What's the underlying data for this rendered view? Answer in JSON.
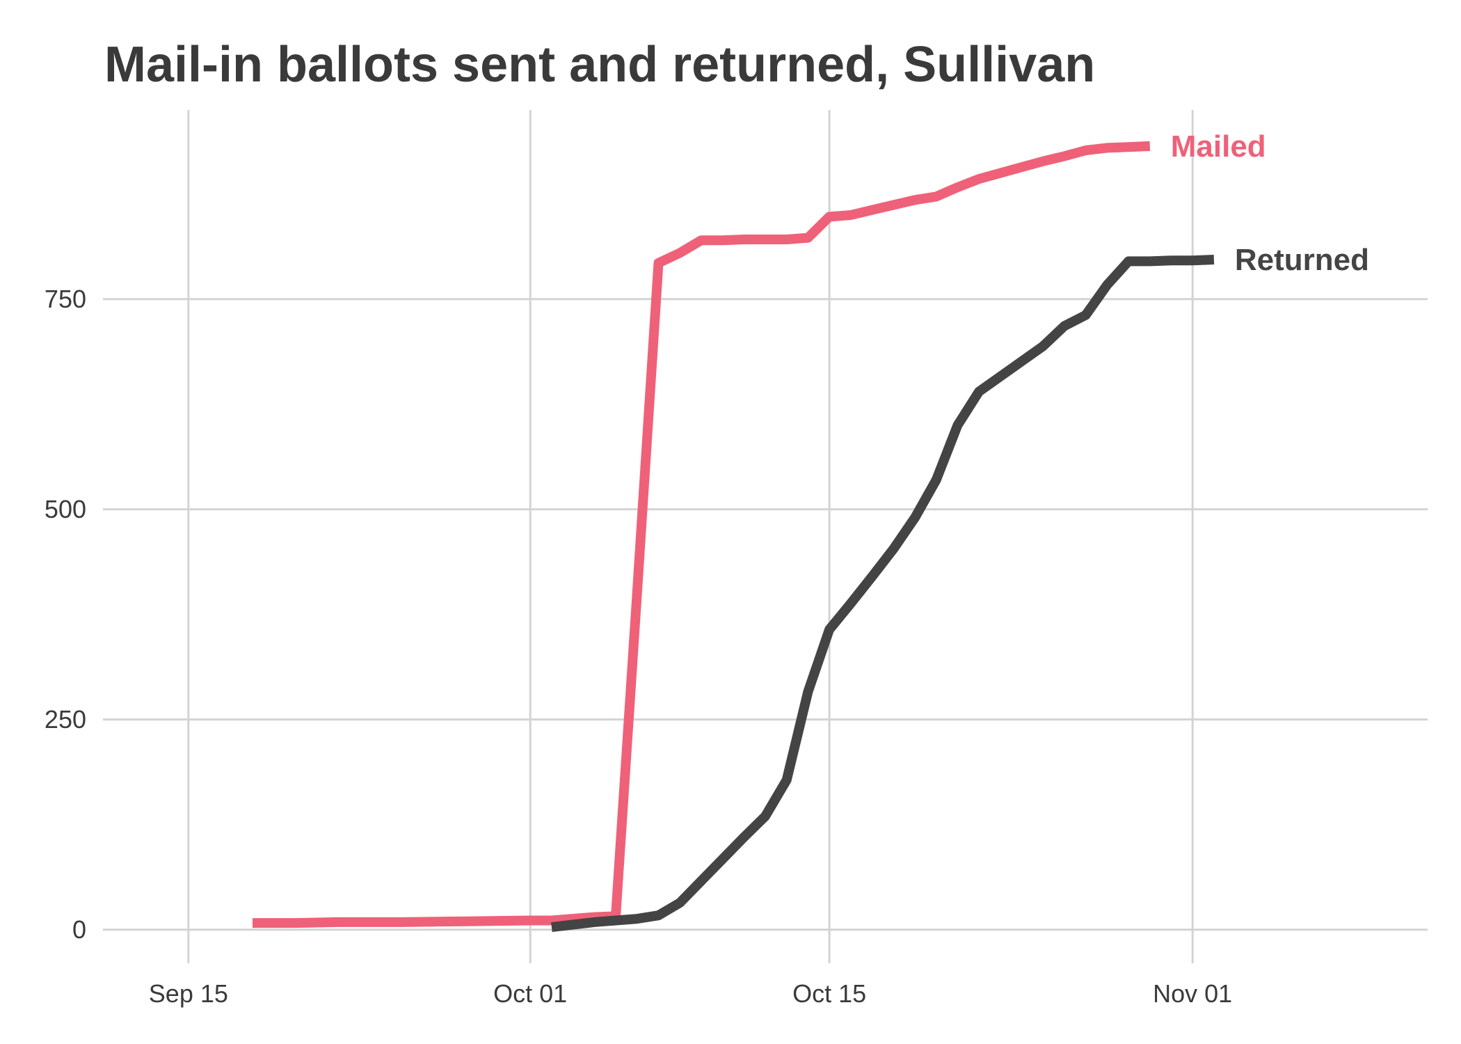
{
  "chart_data": {
    "type": "line",
    "title": "Mail-in ballots sent and returned, Sullivan",
    "xlabel": "",
    "ylabel": "",
    "x_ticks": [
      {
        "date": "2020-09-15",
        "label": "Sep 15"
      },
      {
        "date": "2020-10-01",
        "label": "Oct 01"
      },
      {
        "date": "2020-10-15",
        "label": "Oct 15"
      },
      {
        "date": "2020-11-01",
        "label": "Nov 01"
      }
    ],
    "y_ticks": [
      0,
      250,
      500,
      750
    ],
    "xlim": [
      "2020-09-11",
      "2020-11-12"
    ],
    "ylim": [
      -30,
      975
    ],
    "grid": true,
    "legend": "direct labels at line ends",
    "series": [
      {
        "name": "Mailed",
        "color": "#ef6178",
        "points": [
          [
            "2020-09-18",
            8
          ],
          [
            "2020-09-20",
            8
          ],
          [
            "2020-09-22",
            9
          ],
          [
            "2020-09-25",
            9
          ],
          [
            "2020-09-28",
            10
          ],
          [
            "2020-10-01",
            11
          ],
          [
            "2020-10-02",
            11
          ],
          [
            "2020-10-04",
            15
          ],
          [
            "2020-10-05",
            16
          ],
          [
            "2020-10-06",
            400
          ],
          [
            "2020-10-07",
            793
          ],
          [
            "2020-10-08",
            805
          ],
          [
            "2020-10-09",
            820
          ],
          [
            "2020-10-10",
            820
          ],
          [
            "2020-10-11",
            821
          ],
          [
            "2020-10-12",
            821
          ],
          [
            "2020-10-13",
            821
          ],
          [
            "2020-10-14",
            823
          ],
          [
            "2020-10-15",
            848
          ],
          [
            "2020-10-16",
            850
          ],
          [
            "2020-10-17",
            856
          ],
          [
            "2020-10-18",
            862
          ],
          [
            "2020-10-19",
            868
          ],
          [
            "2020-10-20",
            872
          ],
          [
            "2020-10-21",
            883
          ],
          [
            "2020-10-22",
            893
          ],
          [
            "2020-10-23",
            900
          ],
          [
            "2020-10-24",
            907
          ],
          [
            "2020-10-25",
            914
          ],
          [
            "2020-10-26",
            920
          ],
          [
            "2020-10-27",
            927
          ],
          [
            "2020-10-28",
            930
          ],
          [
            "2020-10-29",
            931
          ],
          [
            "2020-10-30",
            932
          ]
        ]
      },
      {
        "name": "Returned",
        "color": "#444444",
        "points": [
          [
            "2020-10-02",
            3
          ],
          [
            "2020-10-03",
            6
          ],
          [
            "2020-10-04",
            9
          ],
          [
            "2020-10-05",
            11
          ],
          [
            "2020-10-06",
            13
          ],
          [
            "2020-10-07",
            17
          ],
          [
            "2020-10-08",
            32
          ],
          [
            "2020-10-09",
            58
          ],
          [
            "2020-10-10",
            84
          ],
          [
            "2020-10-11",
            110
          ],
          [
            "2020-10-12",
            135
          ],
          [
            "2020-10-13",
            178
          ],
          [
            "2020-10-14",
            283
          ],
          [
            "2020-10-15",
            357
          ],
          [
            "2020-10-16",
            388
          ],
          [
            "2020-10-17",
            420
          ],
          [
            "2020-10-18",
            453
          ],
          [
            "2020-10-19",
            490
          ],
          [
            "2020-10-20",
            535
          ],
          [
            "2020-10-21",
            600
          ],
          [
            "2020-10-22",
            640
          ],
          [
            "2020-10-23",
            658
          ],
          [
            "2020-10-24",
            676
          ],
          [
            "2020-10-25",
            694
          ],
          [
            "2020-10-26",
            718
          ],
          [
            "2020-10-27",
            731
          ],
          [
            "2020-10-28",
            767
          ],
          [
            "2020-10-29",
            795
          ],
          [
            "2020-10-30",
            795
          ],
          [
            "2020-10-31",
            796
          ],
          [
            "2020-11-01",
            796
          ],
          [
            "2020-11-02",
            797
          ]
        ]
      }
    ]
  }
}
